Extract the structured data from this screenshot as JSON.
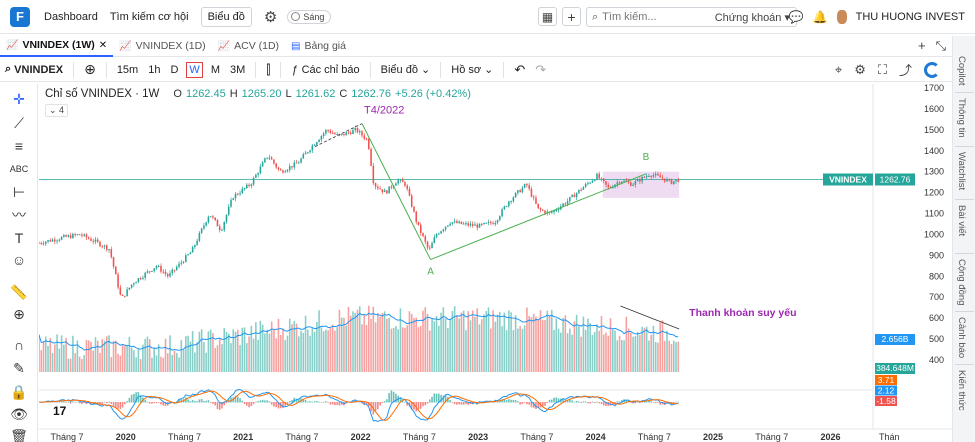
{
  "topnav": {
    "logo": "F",
    "links": [
      "Dashboard",
      "Tìm kiếm cơ hội"
    ],
    "chart_button": "Biểu đồ",
    "theme_label": "Sáng",
    "search_placeholder": "Tìm kiếm...",
    "search_scope": "Chứng khoán",
    "user_name": "THU HUONG INVEST"
  },
  "tabs": [
    {
      "label": "VNINDEX (1W)",
      "active": true
    },
    {
      "label": "VNINDEX (1D)",
      "active": false
    },
    {
      "label": "ACV (1D)",
      "active": false
    },
    {
      "label": "Bảng giá",
      "active": false
    }
  ],
  "toolbar": {
    "symbol": "VNINDEX",
    "intervals": [
      "15m",
      "1h",
      "D",
      "W",
      "M",
      "3M"
    ],
    "selected_interval": "W",
    "indicators": "Các chỉ báo",
    "chart_menu": "Biểu đồ",
    "profile_menu": "Hồ sơ"
  },
  "right_panel": [
    "Copilot",
    "Thông tin",
    "Watchlist",
    "Bài viết",
    "Cộng đồng",
    "Cảnh báo",
    "Kiến thức"
  ],
  "legend": {
    "title": "Chỉ số VNINDEX · 1W",
    "open_label": "O",
    "open": "1262.45",
    "high_label": "H",
    "high": "1265.20",
    "low_label": "L",
    "low": "1261.62",
    "close_label": "C",
    "close": "1262.76",
    "change": "+5.26 (+0.42%)",
    "collapsed_count": "4"
  },
  "annotations": {
    "peak_label": "T4/2022",
    "point_a": "A",
    "point_b": "B",
    "volume_note": "Thanh khoản suy yếu"
  },
  "colors": {
    "up": "#26a69a",
    "down": "#ef5350",
    "annotation": "#9c27b0",
    "trend_line": "#4caf50",
    "accent": "#2962ff"
  },
  "chart_data": {
    "type": "candlestick",
    "symbol": "VNINDEX",
    "x_ticks": [
      "Tháng 7",
      "2020",
      "Tháng 7",
      "2021",
      "Tháng 7",
      "2022",
      "Tháng 7",
      "2023",
      "Tháng 7",
      "2024",
      "Tháng 7",
      "2025",
      "Tháng 7",
      "2026",
      "Thán"
    ],
    "y_ticks": [
      1700,
      1600,
      1500,
      1400,
      1300,
      1200,
      1100,
      1000,
      900,
      800,
      700,
      600,
      500,
      400
    ],
    "price_range": [
      700,
      1700
    ],
    "last_price_label": "VNINDEX",
    "last_price": 1262.76,
    "volume_ma_label": "2.656B",
    "volume_label": "384.648M",
    "macd_labels": [
      "3.71",
      "2.12",
      "-1.58"
    ],
    "key_points": [
      {
        "label": "T4/2022",
        "date": "2022-04",
        "value": 1530
      },
      {
        "label": "A",
        "date": "2022-11",
        "value": 880
      },
      {
        "label": "B",
        "date": "2024-09",
        "value": 1290
      }
    ],
    "price_path": [
      [
        2019.5,
        960
      ],
      [
        2019.7,
        985
      ],
      [
        2019.85,
        1000
      ],
      [
        2020.0,
        960
      ],
      [
        2020.1,
        930
      ],
      [
        2020.2,
        690
      ],
      [
        2020.3,
        770
      ],
      [
        2020.5,
        850
      ],
      [
        2020.6,
        800
      ],
      [
        2020.8,
        920
      ],
      [
        2020.95,
        1100
      ],
      [
        2021.05,
        1020
      ],
      [
        2021.15,
        1180
      ],
      [
        2021.3,
        1240
      ],
      [
        2021.45,
        1380
      ],
      [
        2021.55,
        1300
      ],
      [
        2021.7,
        1340
      ],
      [
        2021.85,
        1440
      ],
      [
        2021.95,
        1500
      ],
      [
        2022.05,
        1470
      ],
      [
        2022.2,
        1500
      ],
      [
        2022.3,
        1450
      ],
      [
        2022.35,
        1240
      ],
      [
        2022.45,
        1200
      ],
      [
        2022.55,
        1260
      ],
      [
        2022.62,
        1240
      ],
      [
        2022.72,
        1050
      ],
      [
        2022.82,
        920
      ],
      [
        2022.88,
        1000
      ],
      [
        2023.0,
        1060
      ],
      [
        2023.1,
        1050
      ],
      [
        2023.25,
        1040
      ],
      [
        2023.38,
        1060
      ],
      [
        2023.5,
        1160
      ],
      [
        2023.65,
        1240
      ],
      [
        2023.75,
        1120
      ],
      [
        2023.85,
        1100
      ],
      [
        2024.0,
        1160
      ],
      [
        2024.12,
        1220
      ],
      [
        2024.25,
        1280
      ],
      [
        2024.35,
        1220
      ],
      [
        2024.45,
        1260
      ],
      [
        2024.55,
        1240
      ],
      [
        2024.7,
        1290
      ],
      [
        2024.8,
        1270
      ],
      [
        2024.88,
        1250
      ],
      [
        2024.95,
        1262.76
      ]
    ]
  }
}
